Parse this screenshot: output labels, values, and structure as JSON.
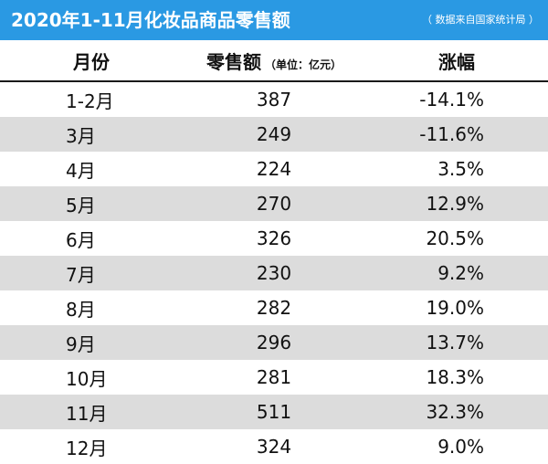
{
  "header": {
    "title": "2020年1-11月化妆品商品零售额",
    "source": "（ 数据来自国家统计局 ）"
  },
  "chart_data": {
    "type": "table",
    "title": "2020年1-11月化妆品商品零售额",
    "columns": [
      {
        "label": "月份",
        "unit": ""
      },
      {
        "label": "零售额",
        "unit": "（单位：亿元）"
      },
      {
        "label": "涨幅",
        "unit": ""
      }
    ],
    "rows": [
      {
        "month": "1-2月",
        "sales": "387",
        "change": "-14.1%"
      },
      {
        "month": "3月",
        "sales": "249",
        "change": "-11.6%"
      },
      {
        "month": "4月",
        "sales": "224",
        "change": "3.5%"
      },
      {
        "month": "5月",
        "sales": "270",
        "change": "12.9%"
      },
      {
        "month": "6月",
        "sales": "326",
        "change": "20.5%"
      },
      {
        "month": "7月",
        "sales": "230",
        "change": "9.2%"
      },
      {
        "month": "8月",
        "sales": "282",
        "change": "19.0%"
      },
      {
        "month": "9月",
        "sales": "296",
        "change": "13.7%"
      },
      {
        "month": "10月",
        "sales": "281",
        "change": "18.3%"
      },
      {
        "month": "11月",
        "sales": "511",
        "change": "32.3%"
      },
      {
        "month": "12月",
        "sales": "324",
        "change": "9.0%"
      }
    ]
  },
  "colors": {
    "header_bg": "#2a99e3",
    "row_alt": "#dcdcdc"
  }
}
